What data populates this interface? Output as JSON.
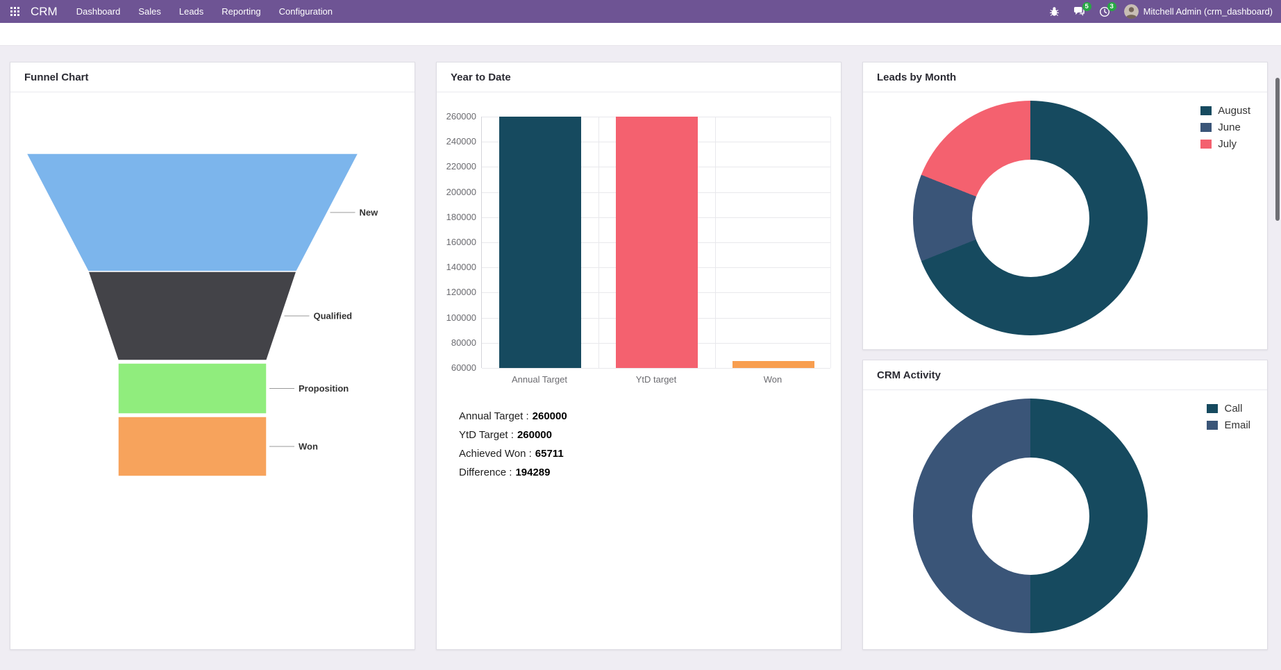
{
  "navbar": {
    "app_name": "CRM",
    "menu": [
      "Dashboard",
      "Sales",
      "Leads",
      "Reporting",
      "Configuration"
    ],
    "messages_count": "5",
    "activities_count": "3",
    "user_name": "Mitchell Admin (crm_dashboard)"
  },
  "theme": {
    "navbar_bg": "#6e5494",
    "badge_color": "#28a745",
    "page_bg": "#efedf3",
    "teal": "#164a5f",
    "navy": "#3a5578",
    "red": "#f4616f",
    "orange": "#f89e4f"
  },
  "ytd_stats": [
    {
      "label": "Annual Target :",
      "value": "260000"
    },
    {
      "label": "YtD Target :",
      "value": "260000"
    },
    {
      "label": "Achieved Won :",
      "value": "65711"
    },
    {
      "label": "Difference :",
      "value": "194289"
    }
  ],
  "chart_data": [
    {
      "type": "funnel",
      "title": "Funnel Chart",
      "categories": [
        "New",
        "Qualified",
        "Proposition",
        "Won"
      ],
      "colors": [
        "#7cb5ec",
        "#434348",
        "#90ed7d",
        "#f7a35c"
      ]
    },
    {
      "type": "bar",
      "title": "Year to Date",
      "categories": [
        "Annual Target",
        "YtD target",
        "Won"
      ],
      "values": [
        260000,
        260000,
        65711
      ],
      "colors": [
        "#164a5f",
        "#f4616f",
        "#f89e4f"
      ],
      "ylim": [
        60000,
        260000
      ],
      "ytick_step": 20000,
      "grid": true,
      "legend_position": "none"
    },
    {
      "type": "donut",
      "title": "Leads by Month",
      "legend_position": "top-right",
      "series": [
        {
          "name": "August",
          "value": 69,
          "color": "#164a5f"
        },
        {
          "name": "June",
          "value": 12,
          "color": "#3a5578"
        },
        {
          "name": "July",
          "value": 19,
          "color": "#f4616f"
        }
      ]
    },
    {
      "type": "donut",
      "title": "CRM Activity",
      "legend_position": "top-right",
      "series": [
        {
          "name": "Call",
          "value": 50,
          "color": "#164a5f"
        },
        {
          "name": "Email",
          "value": 50,
          "color": "#3a5578"
        }
      ]
    }
  ]
}
